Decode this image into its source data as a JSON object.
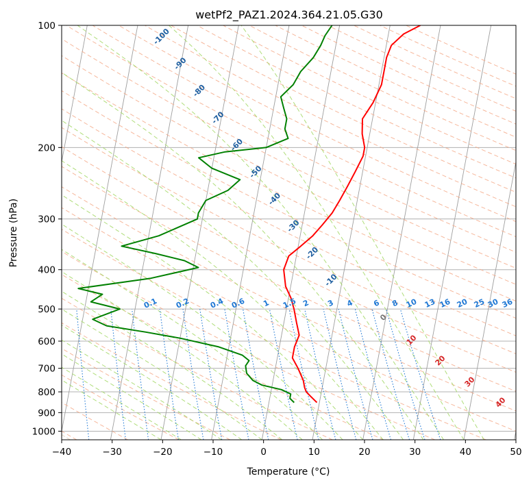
{
  "chart_data": {
    "type": "line",
    "title": "wetPf2_PAZ1.2024.364.21.05.G30",
    "xlabel": "Temperature (°C)",
    "ylabel": "Pressure (hPa)",
    "xlim": [
      -40,
      50
    ],
    "ylim": [
      1050,
      100
    ],
    "y_scale": "log",
    "grid": true,
    "x_ticks": [
      "−40",
      "−30",
      "−20",
      "−10",
      "0",
      "10",
      "20",
      "30",
      "40",
      "50"
    ],
    "y_ticks": [
      "100",
      "200",
      "300",
      "400",
      "500",
      "600",
      "700",
      "800",
      "900",
      "1000"
    ],
    "series": [
      {
        "color": "#ff0000",
        "pressure": [
          850,
          820,
          800,
          780,
          750,
          700,
          660,
          620,
          580,
          540,
          500,
          470,
          440,
          400,
          370,
          350,
          330,
          310,
          290,
          270,
          250,
          230,
          210,
          200,
          185,
          170,
          155,
          140,
          130,
          120,
          112,
          105,
          100
        ],
        "temperature": [
          9.5,
          8.0,
          7.0,
          6.5,
          6.0,
          4.5,
          3.0,
          3.0,
          3.5,
          2.5,
          1.5,
          0.5,
          -1.0,
          -2.0,
          -1.5,
          0.5,
          2.5,
          4.0,
          5.5,
          6.5,
          7.5,
          8.5,
          9.5,
          9.5,
          8.5,
          8.0,
          9.5,
          10.5,
          10.5,
          10.5,
          11.0,
          13.0,
          16.0
        ]
      },
      {
        "color": "#008000",
        "pressure": [
          850,
          830,
          810,
          790,
          770,
          750,
          720,
          690,
          670,
          650,
          620,
          590,
          570,
          550,
          530,
          500,
          480,
          460,
          445,
          420,
          395,
          380,
          365,
          350,
          330,
          300,
          290,
          270,
          255,
          240,
          225,
          212,
          205,
          200,
          190,
          180,
          170,
          160,
          150,
          140,
          130,
          120,
          112,
          106,
          100
        ],
        "temperature": [
          5.0,
          4.0,
          4.0,
          2.0,
          -2.0,
          -4.0,
          -5.5,
          -6.0,
          -5.5,
          -7.0,
          -12.0,
          -20.0,
          -27.0,
          -35.0,
          -38.0,
          -33.0,
          -39.0,
          -37.0,
          -42.0,
          -28.0,
          -19.0,
          -22.0,
          -28.0,
          -35.0,
          -28.0,
          -21.0,
          -21.0,
          -20.0,
          -16.0,
          -14.0,
          -20.0,
          -23.0,
          -18.0,
          -10.0,
          -6.0,
          -7.0,
          -7.0,
          -8.0,
          -9.0,
          -7.0,
          -6.0,
          -4.0,
          -3.0,
          -2.5,
          -1.5
        ]
      }
    ],
    "dry_adiabat_labels": [
      "-100",
      "-90",
      "-80",
      "-70",
      "-60",
      "-50",
      "-40",
      "-30",
      "-20",
      "-10"
    ],
    "mixing_ratio_labels": [
      "0.1",
      "0.2",
      "0.4",
      "0.6",
      "1",
      "1.5",
      "2",
      "3",
      "4",
      "6",
      "8",
      "10",
      "13",
      "16",
      "20",
      "25",
      "30",
      "36"
    ],
    "moist_adiabat_labels": [
      "0",
      "10",
      "20",
      "30",
      "40"
    ],
    "colors": {
      "temperature": "#ff0000",
      "dewpoint": "#008000",
      "dry_adiabat": "#f4a582",
      "moist_adiabat": "#a6d96a",
      "mixing_ratio": "#1f78d4",
      "dry_label": "#1f5fa0",
      "moist_label": "#d62728",
      "isotherm": "#9e9e9e",
      "grid": "#b0b0b0",
      "zero_label": "#777777"
    }
  }
}
